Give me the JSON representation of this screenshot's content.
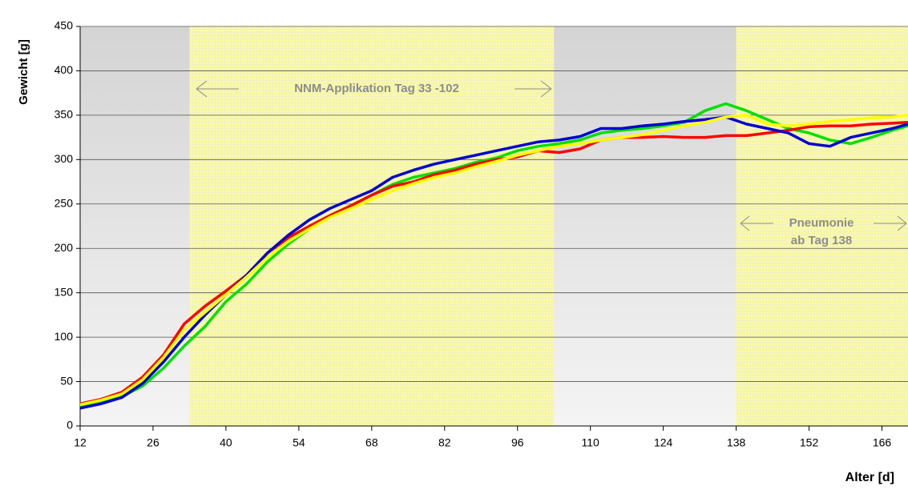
{
  "chart_data": {
    "type": "line",
    "ylabel": "Gewicht [g]",
    "xlabel": "Alter [d]",
    "annotations": [
      "NNM-Applikation Tag 33 -102",
      "Pneumonie",
      "ab Tag 138"
    ],
    "bands": [
      {
        "from": 33,
        "to": 103
      },
      {
        "from": 138,
        "to": 171
      }
    ],
    "x": [
      12,
      16,
      20,
      24,
      28,
      32,
      36,
      40,
      44,
      48,
      52,
      56,
      60,
      64,
      68,
      72,
      76,
      80,
      84,
      88,
      92,
      96,
      100,
      104,
      108,
      112,
      116,
      120,
      124,
      128,
      132,
      136,
      140,
      144,
      148,
      152,
      156,
      160,
      164,
      168,
      171
    ],
    "series": [
      {
        "color": "#00e000",
        "values": [
          22,
          27,
          33,
          45,
          65,
          90,
          112,
          140,
          160,
          185,
          205,
          222,
          237,
          248,
          260,
          272,
          280,
          285,
          290,
          297,
          302,
          310,
          315,
          318,
          322,
          330,
          333,
          335,
          338,
          342,
          355,
          363,
          355,
          345,
          335,
          330,
          322,
          318,
          325,
          333,
          338
        ]
      },
      {
        "color": "#ff0000",
        "values": [
          25,
          30,
          38,
          55,
          80,
          115,
          135,
          152,
          170,
          195,
          212,
          225,
          237,
          248,
          260,
          270,
          275,
          283,
          288,
          295,
          300,
          303,
          310,
          308,
          312,
          322,
          325,
          325,
          326,
          325,
          325,
          327,
          327,
          330,
          333,
          337,
          338,
          338,
          340,
          341,
          342
        ]
      },
      {
        "color": "#0000d0",
        "values": [
          20,
          25,
          32,
          48,
          72,
          100,
          125,
          148,
          170,
          195,
          215,
          232,
          245,
          255,
          265,
          280,
          288,
          295,
          300,
          305,
          310,
          315,
          320,
          322,
          326,
          335,
          335,
          338,
          340,
          343,
          345,
          348,
          340,
          335,
          330,
          318,
          315,
          325,
          330,
          335,
          340
        ]
      },
      {
        "color": "#ffff00",
        "values": [
          24,
          29,
          36,
          52,
          77,
          108,
          128,
          148,
          168,
          190,
          208,
          222,
          235,
          245,
          255,
          265,
          273,
          280,
          285,
          292,
          298,
          305,
          310,
          315,
          318,
          322,
          325,
          328,
          333,
          338,
          342,
          348,
          350,
          340,
          338,
          340,
          343,
          345,
          347,
          348,
          350
        ]
      }
    ],
    "xlim": [
      12,
      171
    ],
    "ylim": [
      0,
      450
    ],
    "xticks": [
      12,
      26,
      40,
      54,
      68,
      82,
      96,
      110,
      124,
      138,
      152,
      166
    ],
    "yticks": [
      0,
      50,
      100,
      150,
      200,
      250,
      300,
      350,
      400,
      450
    ]
  }
}
